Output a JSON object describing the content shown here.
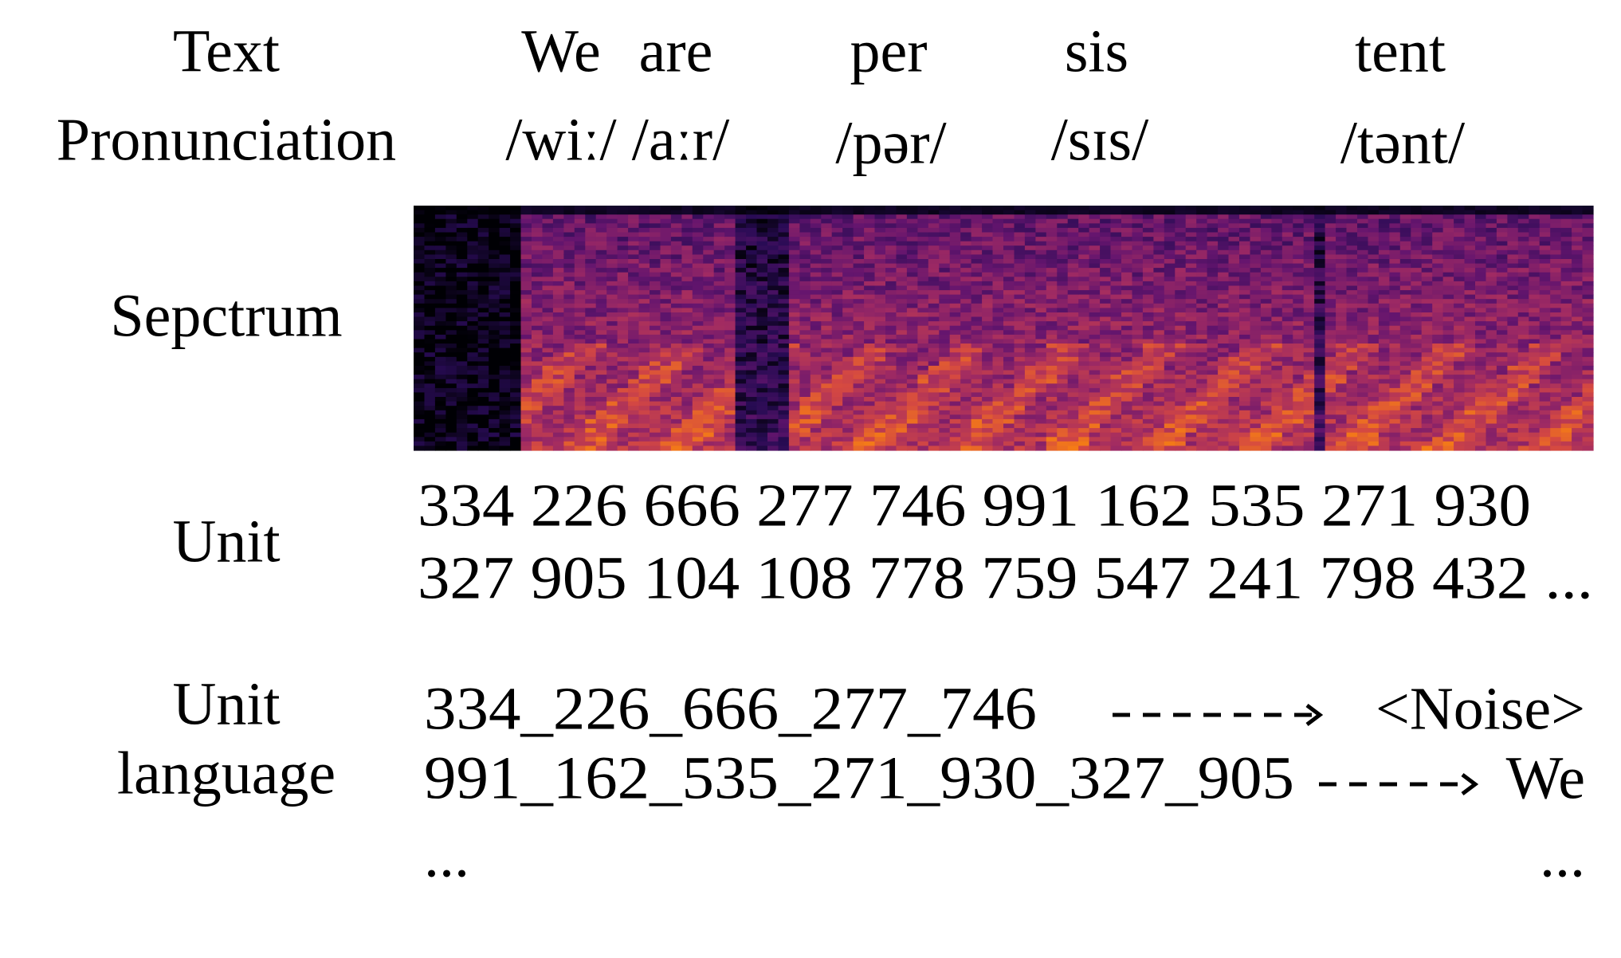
{
  "labels": {
    "text": "Text",
    "pronunciation": "Pronunciation",
    "spectrum": "Sepctrum",
    "unit": "Unit",
    "unit_language": [
      "Unit",
      "language"
    ]
  },
  "words": [
    {
      "text": "We",
      "pronunciation": "/wiː/"
    },
    {
      "text": "are",
      "pronunciation": "/aːr/"
    },
    {
      "text": "per",
      "pronunciation": "/pər/"
    },
    {
      "text": "sis",
      "pronunciation": "/sɪs/"
    },
    {
      "text": "tent",
      "pronunciation": "/tənt/"
    }
  ],
  "units": [
    "334 226 666 277 746 991 162 535 271 930",
    "327 905 104 108 778 759 547 241 798 432 ..."
  ],
  "unit_language": [
    {
      "units": "334_226_666_277_746",
      "target": "<Noise>"
    },
    {
      "units": "991_162_535_271_930_327_905",
      "target": "We"
    },
    {
      "units": "...",
      "target": "..."
    }
  ]
}
